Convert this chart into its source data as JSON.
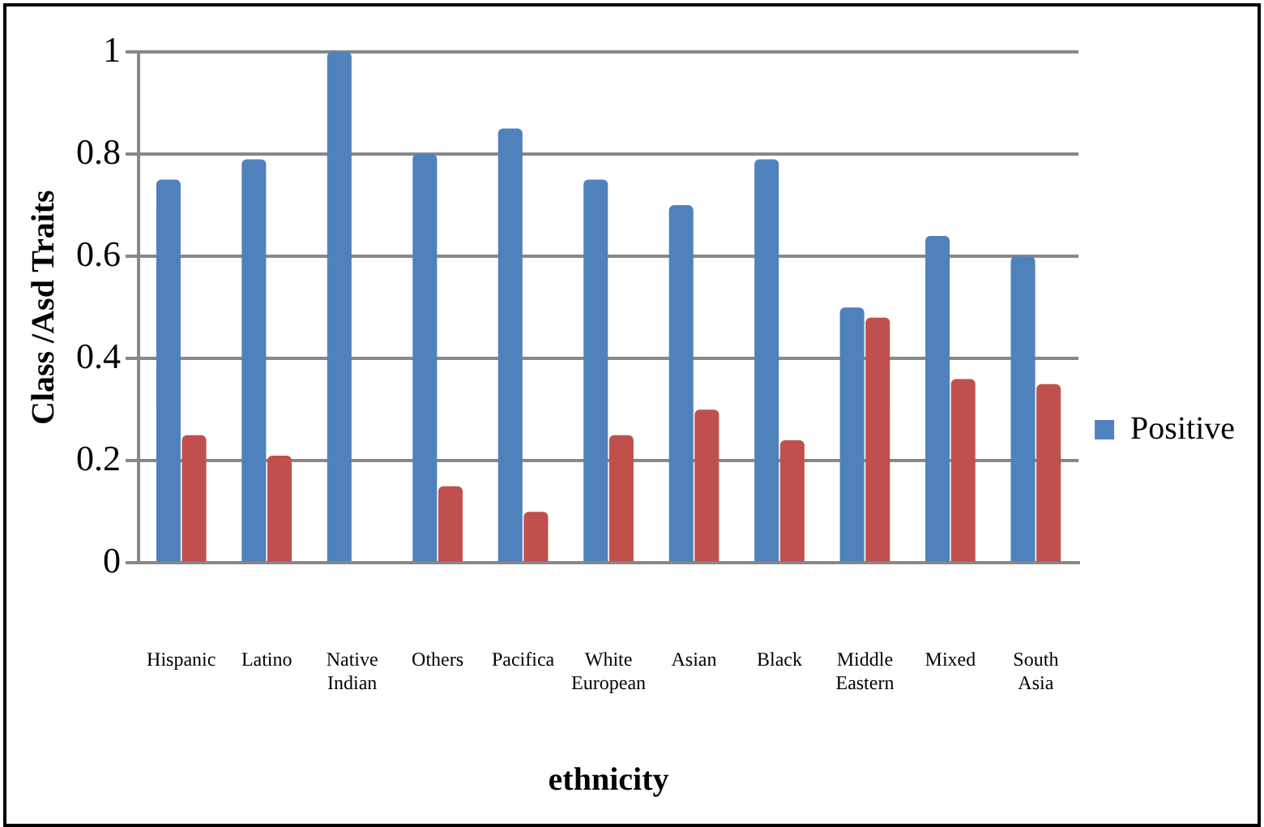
{
  "chart_data": {
    "type": "bar",
    "xlabel": "ethnicity",
    "ylabel": "Class /Asd Traits",
    "categories": [
      "Hispanic",
      "Latino",
      "Native Indian",
      "Others",
      "Pacifica",
      "White European",
      "Asian",
      "Black",
      "Middle Eastern",
      "Mixed",
      "South Asia"
    ],
    "series": [
      {
        "name": "Positive",
        "color": "#4f81bd",
        "values": [
          0.75,
          0.79,
          1.0,
          0.8,
          0.85,
          0.75,
          0.7,
          0.79,
          0.5,
          0.64,
          0.6
        ]
      },
      {
        "color": "#c0504d",
        "values": [
          0.25,
          0.21,
          0.0,
          0.15,
          0.1,
          0.25,
          0.3,
          0.24,
          0.48,
          0.36,
          0.35
        ]
      }
    ],
    "ylim": [
      0,
      1
    ],
    "yticks": [
      0,
      0.2,
      0.4,
      0.6,
      0.8,
      1
    ],
    "grid": "y",
    "legend": "right"
  }
}
